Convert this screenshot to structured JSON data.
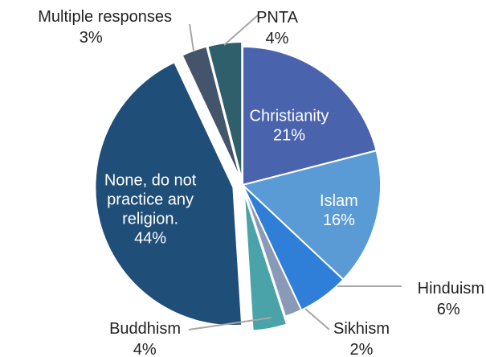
{
  "chart_data": {
    "type": "pie",
    "title": "",
    "start_angle_deg": 0,
    "direction": "clockwise",
    "slices": [
      {
        "name": "Christianity",
        "value": 21,
        "label_text": [
          "Christianity",
          "21%"
        ],
        "color": "#4a63ad",
        "placement": "inside"
      },
      {
        "name": "Islam",
        "value": 16,
        "label_text": [
          "Islam",
          "16%"
        ],
        "color": "#5b9bd5",
        "placement": "inside"
      },
      {
        "name": "Hinduism",
        "value": 6,
        "label_text": [
          "Hinduism",
          "6%"
        ],
        "color": "#2f7ed8",
        "placement": "outside"
      },
      {
        "name": "Sikhism",
        "value": 2,
        "label_text": [
          "Sikhism",
          "2%"
        ],
        "color": "#8a99b6",
        "placement": "outside"
      },
      {
        "name": "Buddhism",
        "value": 4,
        "label_text": [
          "Buddhism",
          "4%"
        ],
        "color": "#4aa3a8",
        "placement": "outside"
      },
      {
        "name": "None, do not practice any religion.",
        "value": 44,
        "label_text": [
          "None, do not",
          "practice any",
          "religion.",
          "44%"
        ],
        "color": "#1f4e79",
        "placement": "inside"
      },
      {
        "name": "Multiple responses",
        "value": 3,
        "label_text": [
          "Multiple responses",
          "3%"
        ],
        "color": "#44546a",
        "placement": "outside"
      },
      {
        "name": "PNTA",
        "value": 4,
        "label_text": [
          "PNTA",
          "4%"
        ],
        "color": "#2f5f6a",
        "placement": "outside"
      }
    ],
    "legend": "none"
  }
}
